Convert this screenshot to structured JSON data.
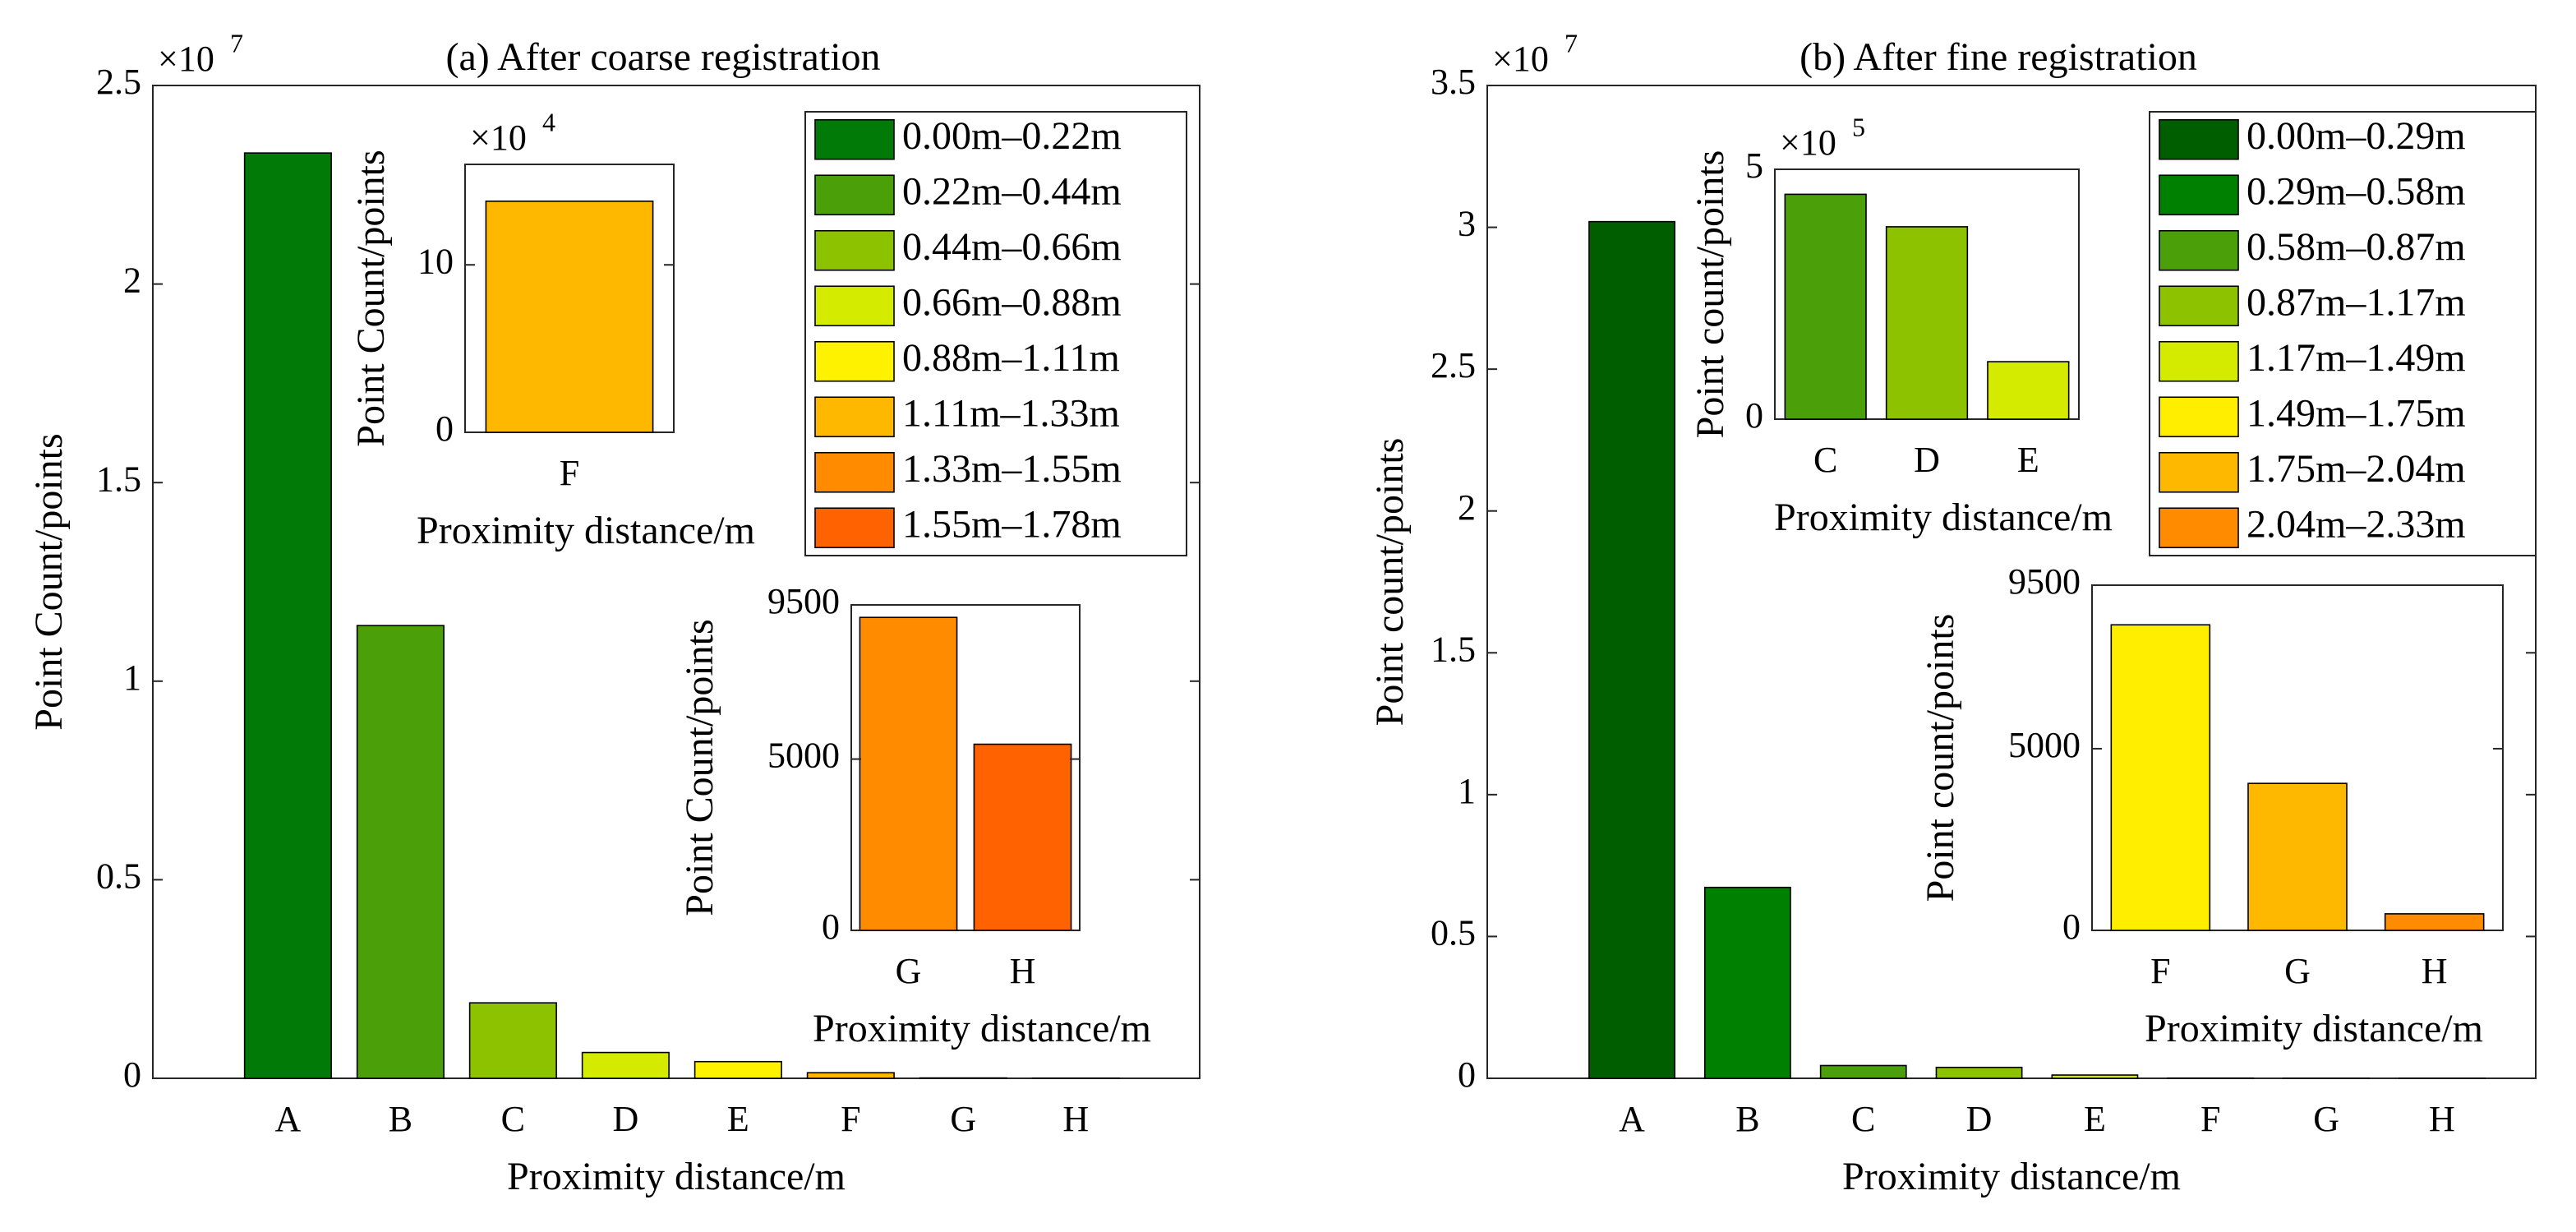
{
  "chart_data": [
    {
      "type": "bar",
      "title": "(a) After coarse registration",
      "ylabel": "Point Count/points",
      "xlabel": "Proximity distance/m",
      "exponent_base": "×10",
      "exponent": "7",
      "categories": [
        "A",
        "B",
        "C",
        "D",
        "E",
        "F",
        "G",
        "H"
      ],
      "values": [
        2.33,
        1.14,
        0.19,
        0.065,
        0.042,
        0.014,
        0.00091,
        0.00054
      ],
      "colors": [
        "#017a08",
        "#4ba00a",
        "#8dc200",
        "#d4eb00",
        "#fff200",
        "#ffb800",
        "#ff8c00",
        "#ff6200"
      ],
      "legend": [
        "0.00m–0.22m",
        "0.22m–0.44m",
        "0.44m–0.66m",
        "0.66m–0.88m",
        "0.88m–1.11m",
        "1.11m–1.33m",
        "1.33m–1.55m",
        "1.55m–1.78m"
      ],
      "ylim": [
        0,
        2.5
      ],
      "yticks": [
        0,
        0.5,
        1,
        1.5,
        2,
        2.5
      ]
    },
    {
      "type": "bar",
      "ylabel": "Point Count/points",
      "xlabel": "Proximity distance/m",
      "exponent_base": "×10",
      "exponent": "4",
      "categories": [
        "F"
      ],
      "values": [
        13.8
      ],
      "colors": [
        "#ffb800"
      ],
      "ylim": [
        0,
        16
      ],
      "yticks": [
        0,
        10
      ]
    },
    {
      "type": "bar",
      "ylabel": "Point Count/points",
      "xlabel": "Proximity distance/m",
      "categories": [
        "G",
        "H"
      ],
      "values": [
        9135,
        5433
      ],
      "colors": [
        "#ff8c00",
        "#ff6200"
      ],
      "ylim": [
        0,
        9500
      ],
      "yticks": [
        0,
        5000,
        9500
      ]
    },
    {
      "type": "bar",
      "title": "(b) After fine registration",
      "ylabel": "Point count/points",
      "xlabel": "Proximity distance/m",
      "exponent_base": "×10",
      "exponent": "7",
      "categories": [
        "A",
        "B",
        "C",
        "D",
        "E",
        "F",
        "G",
        "H"
      ],
      "values": [
        3.02,
        0.673,
        0.045,
        0.0385,
        0.0115,
        0.00084,
        0.0004,
        4.55e-05
      ],
      "colors": [
        "#005d00",
        "#008000",
        "#4ba00a",
        "#8dc200",
        "#d4eb00",
        "#ffee00",
        "#ffb800",
        "#ff8c00"
      ],
      "legend": [
        "0.00m–0.29m",
        "0.29m–0.58m",
        "0.58m–0.87m",
        "0.87m–1.17m",
        "1.17m–1.49m",
        "1.49m–1.75m",
        "1.75m–2.04m",
        "2.04m–2.33m"
      ],
      "ylim": [
        0,
        3.5
      ],
      "yticks": [
        0,
        0.5,
        1,
        1.5,
        2,
        2.5,
        3,
        3.5
      ]
    },
    {
      "type": "bar",
      "ylabel": "Point count/points",
      "xlabel": "Proximity distance/m",
      "exponent_base": "×10",
      "exponent": "5",
      "categories": [
        "C",
        "D",
        "E"
      ],
      "values": [
        4.5,
        3.85,
        1.15
      ],
      "colors": [
        "#4ba00a",
        "#8dc200",
        "#d4eb00"
      ],
      "ylim": [
        0,
        5
      ],
      "yticks": [
        0,
        5
      ]
    },
    {
      "type": "bar",
      "ylabel": "Point count/points",
      "xlabel": "Proximity distance/m",
      "categories": [
        "F",
        "G",
        "H"
      ],
      "values": [
        8409,
        4045,
        455
      ],
      "colors": [
        "#ffee00",
        "#ffb800",
        "#ff8c00"
      ],
      "ylim": [
        0,
        9500
      ],
      "yticks": [
        0,
        5000,
        9500
      ]
    }
  ]
}
